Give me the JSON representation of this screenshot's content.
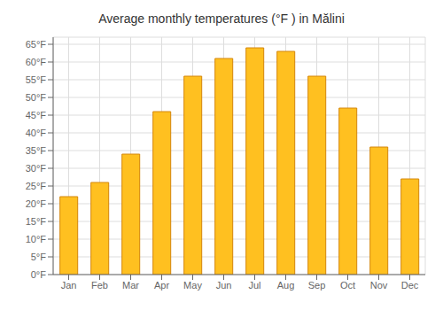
{
  "chart_data": {
    "type": "bar",
    "title": "Average monthly temperatures (°F ) in Mălini",
    "categories": [
      "Jan",
      "Feb",
      "Mar",
      "Apr",
      "May",
      "Jun",
      "Jul",
      "Aug",
      "Sep",
      "Oct",
      "Nov",
      "Dec"
    ],
    "values": [
      22,
      26,
      34,
      46,
      56,
      61,
      64,
      63,
      56,
      47,
      36,
      27
    ],
    "color": "#FFC020",
    "ylim": [
      0,
      67
    ],
    "yticks": [
      {
        "value": 0,
        "label": "0°F"
      },
      {
        "value": 5,
        "label": "5°F"
      },
      {
        "value": 10,
        "label": "10°F"
      },
      {
        "value": 15,
        "label": "15°F"
      },
      {
        "value": 20,
        "label": "20°F"
      },
      {
        "value": 25,
        "label": "25°F"
      },
      {
        "value": 30,
        "label": "30°F"
      },
      {
        "value": 35,
        "label": "35°F"
      },
      {
        "value": 40,
        "label": "40°F"
      },
      {
        "value": 45,
        "label": "45°F"
      },
      {
        "value": 50,
        "label": "50°F"
      },
      {
        "value": 55,
        "label": "55°F"
      },
      {
        "value": 60,
        "label": "60°F"
      },
      {
        "value": 65,
        "label": "65°F"
      }
    ],
    "grid": true
  }
}
